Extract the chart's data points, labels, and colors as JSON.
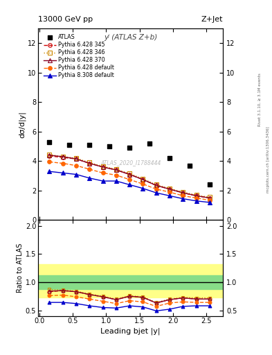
{
  "title_top": "13000 GeV pp",
  "title_right": "Z+Jet",
  "subplot_title": "yʲ (ATLAS Z+b)",
  "watermark": "ATLAS_2020_I1788444",
  "rivet_label": "Rivet 3.1.10, ≥ 3.1M events",
  "arxiv_label": "mcplots.cern.ch [arXiv:1306.3436]",
  "x_data": [
    0.15,
    0.35,
    0.55,
    0.75,
    0.95,
    1.15,
    1.35,
    1.55,
    1.75,
    1.95,
    2.15,
    2.35,
    2.55
  ],
  "atlas_x": [
    0.15,
    0.45,
    0.75,
    1.05,
    1.35,
    1.65,
    1.95,
    2.25,
    2.55
  ],
  "atlas_y": [
    5.3,
    5.1,
    5.1,
    5.0,
    4.9,
    5.2,
    4.2,
    3.7,
    2.4
  ],
  "py6_345_y": [
    4.35,
    4.25,
    4.15,
    3.85,
    3.6,
    3.4,
    3.1,
    2.75,
    2.35,
    2.1,
    1.85,
    1.65,
    1.5
  ],
  "py6_346_y": [
    4.45,
    4.3,
    4.2,
    3.9,
    3.65,
    3.45,
    3.15,
    2.8,
    2.4,
    2.15,
    1.9,
    1.7,
    1.55
  ],
  "py6_370_y": [
    4.4,
    4.3,
    4.15,
    3.85,
    3.6,
    3.4,
    3.1,
    2.75,
    2.35,
    2.1,
    1.85,
    1.65,
    1.5
  ],
  "py6_default_y": [
    3.95,
    3.85,
    3.7,
    3.45,
    3.2,
    3.05,
    2.75,
    2.45,
    2.1,
    1.9,
    1.65,
    1.5,
    1.35
  ],
  "py8_default_y": [
    3.3,
    3.2,
    3.1,
    2.85,
    2.65,
    2.65,
    2.4,
    2.15,
    1.85,
    1.65,
    1.45,
    1.3,
    1.2
  ],
  "ratio_x": [
    0.15,
    0.35,
    0.55,
    0.75,
    0.95,
    1.15,
    1.35,
    1.55,
    1.75,
    1.95,
    2.15,
    2.35,
    2.55
  ],
  "ratio_py6_345": [
    0.83,
    0.85,
    0.83,
    0.78,
    0.74,
    0.69,
    0.75,
    0.73,
    0.63,
    0.69,
    0.72,
    0.7,
    0.7
  ],
  "ratio_py6_346": [
    0.87,
    0.86,
    0.84,
    0.79,
    0.75,
    0.7,
    0.76,
    0.74,
    0.64,
    0.7,
    0.73,
    0.72,
    0.72
  ],
  "ratio_py6_370": [
    0.84,
    0.85,
    0.83,
    0.78,
    0.74,
    0.69,
    0.75,
    0.73,
    0.63,
    0.69,
    0.72,
    0.7,
    0.7
  ],
  "ratio_py6_default": [
    0.76,
    0.77,
    0.74,
    0.7,
    0.66,
    0.62,
    0.67,
    0.65,
    0.57,
    0.63,
    0.65,
    0.64,
    0.64
  ],
  "ratio_py8_default": [
    0.64,
    0.64,
    0.62,
    0.58,
    0.55,
    0.54,
    0.58,
    0.56,
    0.49,
    0.52,
    0.57,
    0.58,
    0.58
  ],
  "band_yellow_lo": 0.73,
  "band_yellow_hi": 1.32,
  "band_green_lo": 0.88,
  "band_green_hi": 1.12,
  "colors": {
    "atlas": "#000000",
    "py6_345": "#cc0000",
    "py6_346": "#cc8800",
    "py6_370": "#880022",
    "py6_default": "#ff6600",
    "py8_default": "#0000cc"
  },
  "ylim_main": [
    0,
    13
  ],
  "ylim_ratio": [
    0.4,
    2.1
  ],
  "yticks_main": [
    0,
    2,
    4,
    6,
    8,
    10,
    12
  ],
  "yticks_ratio": [
    0.5,
    1.0,
    1.5,
    2.0
  ],
  "xlabel": "Leading bjet |y|",
  "ylabel_main": "dσ/d|y|",
  "ylabel_ratio": "Ratio to ATLAS"
}
